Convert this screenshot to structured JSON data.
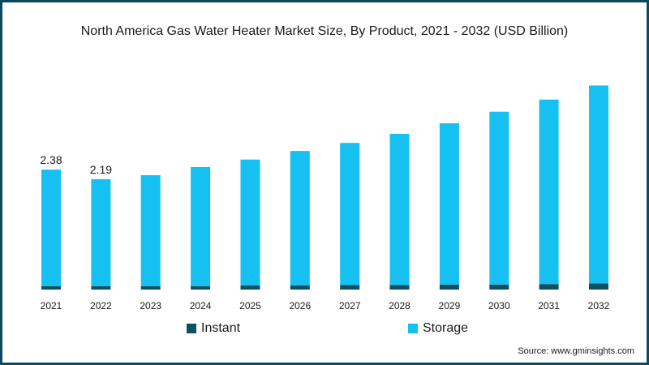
{
  "colors": {
    "instant": "#0d4f63",
    "storage": "#16c0f0",
    "border": "#0b4a5e"
  },
  "source": "Source: www.gminsights.com",
  "chart_data": {
    "type": "bar",
    "stacked": true,
    "title": "North America Gas Water Heater Market Size, By Product, 2021 - 2032 (USD Billion)",
    "xlabel": "",
    "ylabel": "",
    "categories": [
      "2021",
      "2022",
      "2023",
      "2024",
      "2025",
      "2026",
      "2027",
      "2028",
      "2029",
      "2030",
      "2031",
      "2032"
    ],
    "ylim": [
      0,
      4.7
    ],
    "grid": false,
    "legend_position": "bottom",
    "series": [
      {
        "name": "Instant",
        "color": "#0d4f63",
        "values": [
          0.07,
          0.07,
          0.07,
          0.07,
          0.08,
          0.08,
          0.09,
          0.09,
          0.1,
          0.1,
          0.11,
          0.12
        ]
      },
      {
        "name": "Storage",
        "color": "#16c0f0",
        "values": [
          2.31,
          2.12,
          2.2,
          2.36,
          2.5,
          2.67,
          2.82,
          3.0,
          3.2,
          3.43,
          3.66,
          3.93
        ]
      }
    ],
    "data_labels": [
      {
        "category": "2021",
        "text": "2.38"
      },
      {
        "category": "2022",
        "text": "2.19"
      }
    ]
  }
}
